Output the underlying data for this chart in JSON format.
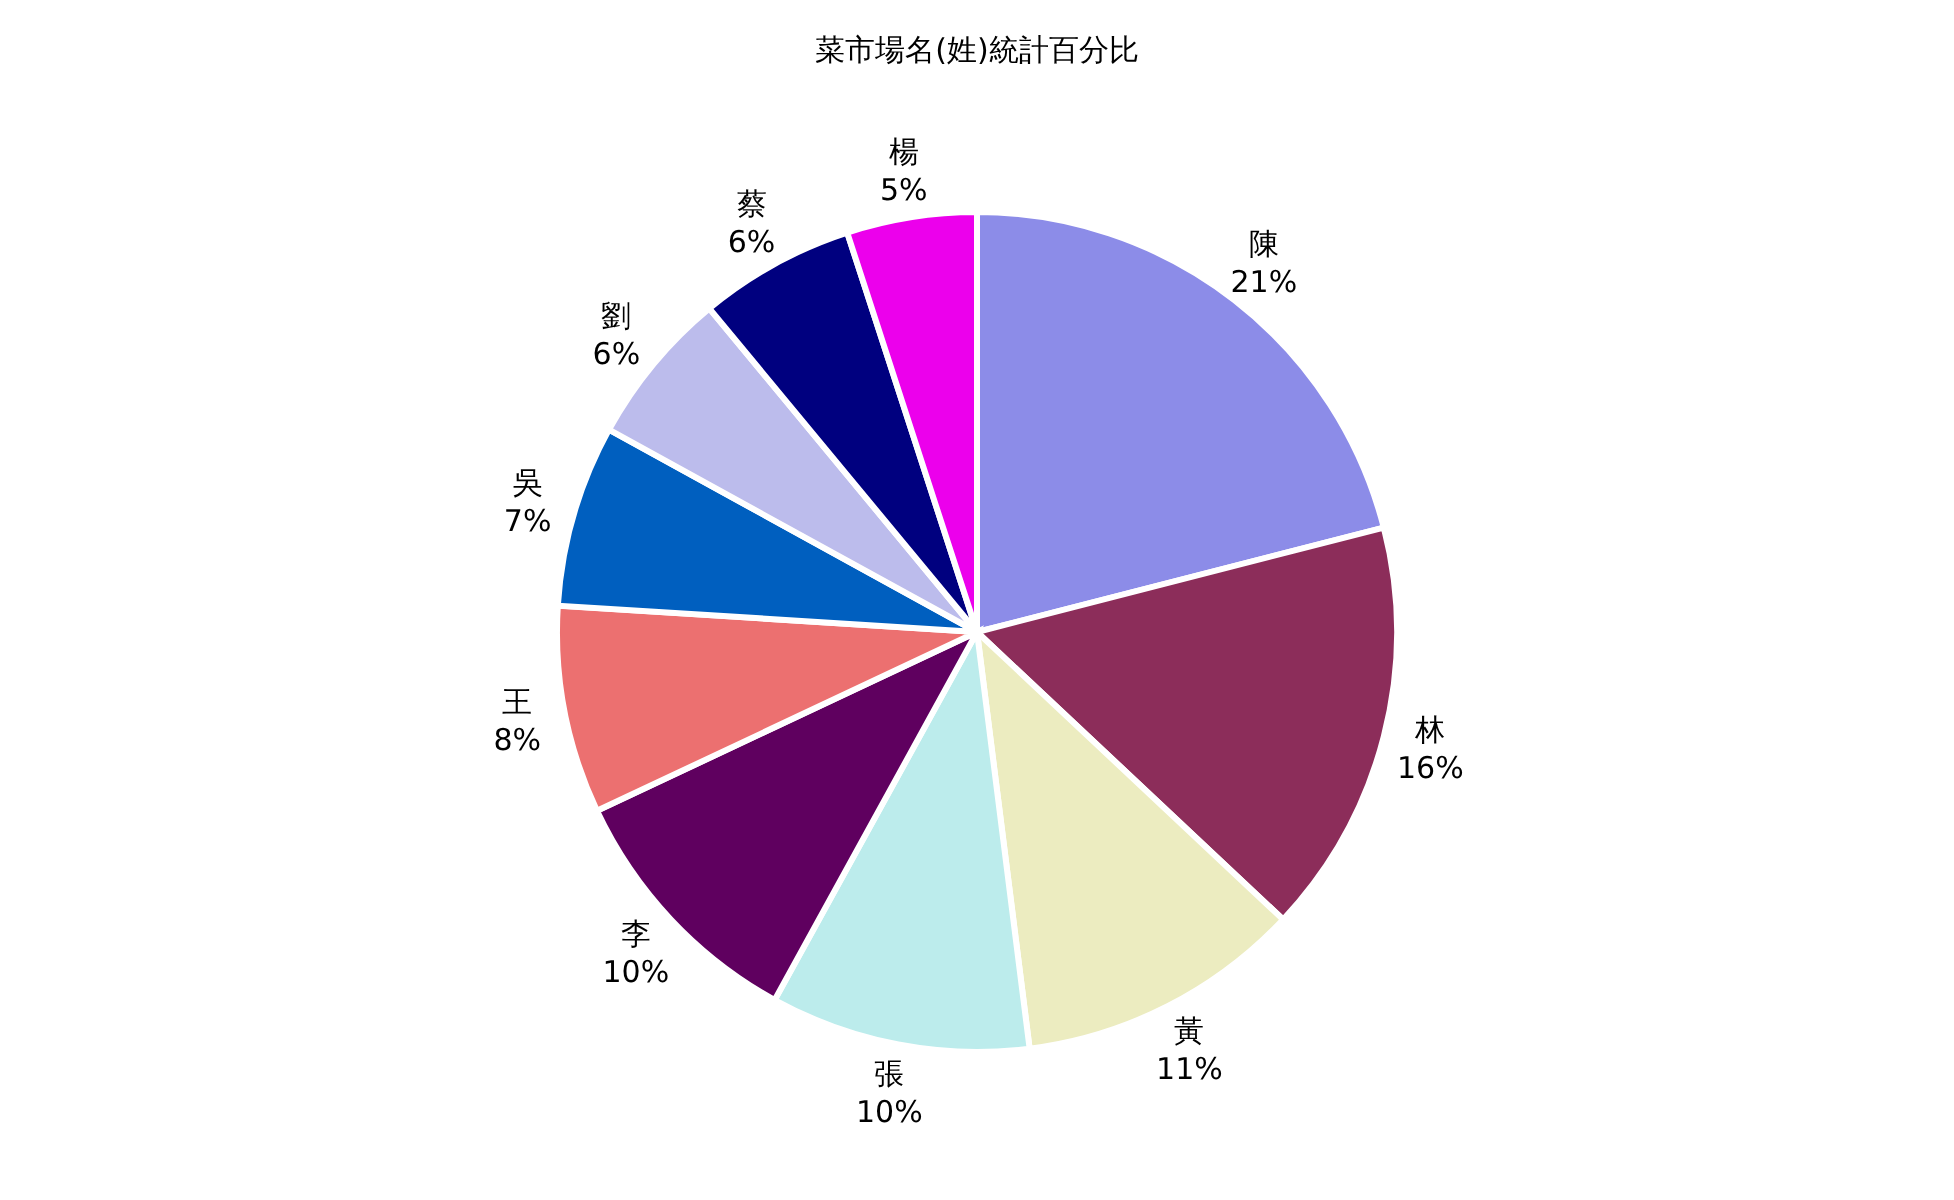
{
  "chart_data": {
    "type": "pie",
    "title": "菜市場名(姓)統計百分比",
    "categories": [
      "陳",
      "林",
      "黃",
      "張",
      "李",
      "王",
      "吳",
      "劉",
      "蔡",
      "楊"
    ],
    "values": [
      21,
      16,
      11,
      10,
      10,
      8,
      7,
      6,
      6,
      5
    ],
    "value_labels": [
      "21%",
      "16%",
      "11%",
      "10%",
      "10%",
      "8%",
      "7%",
      "6%",
      "6%",
      "5%"
    ],
    "colors": [
      "#8c8ce8",
      "#8c2d5a",
      "#ececc0",
      "#bcecec",
      "#5f005f",
      "#ec7070",
      "#005fbf",
      "#bcbcec",
      "#00007f",
      "#ec00ec"
    ],
    "legend": false
  }
}
